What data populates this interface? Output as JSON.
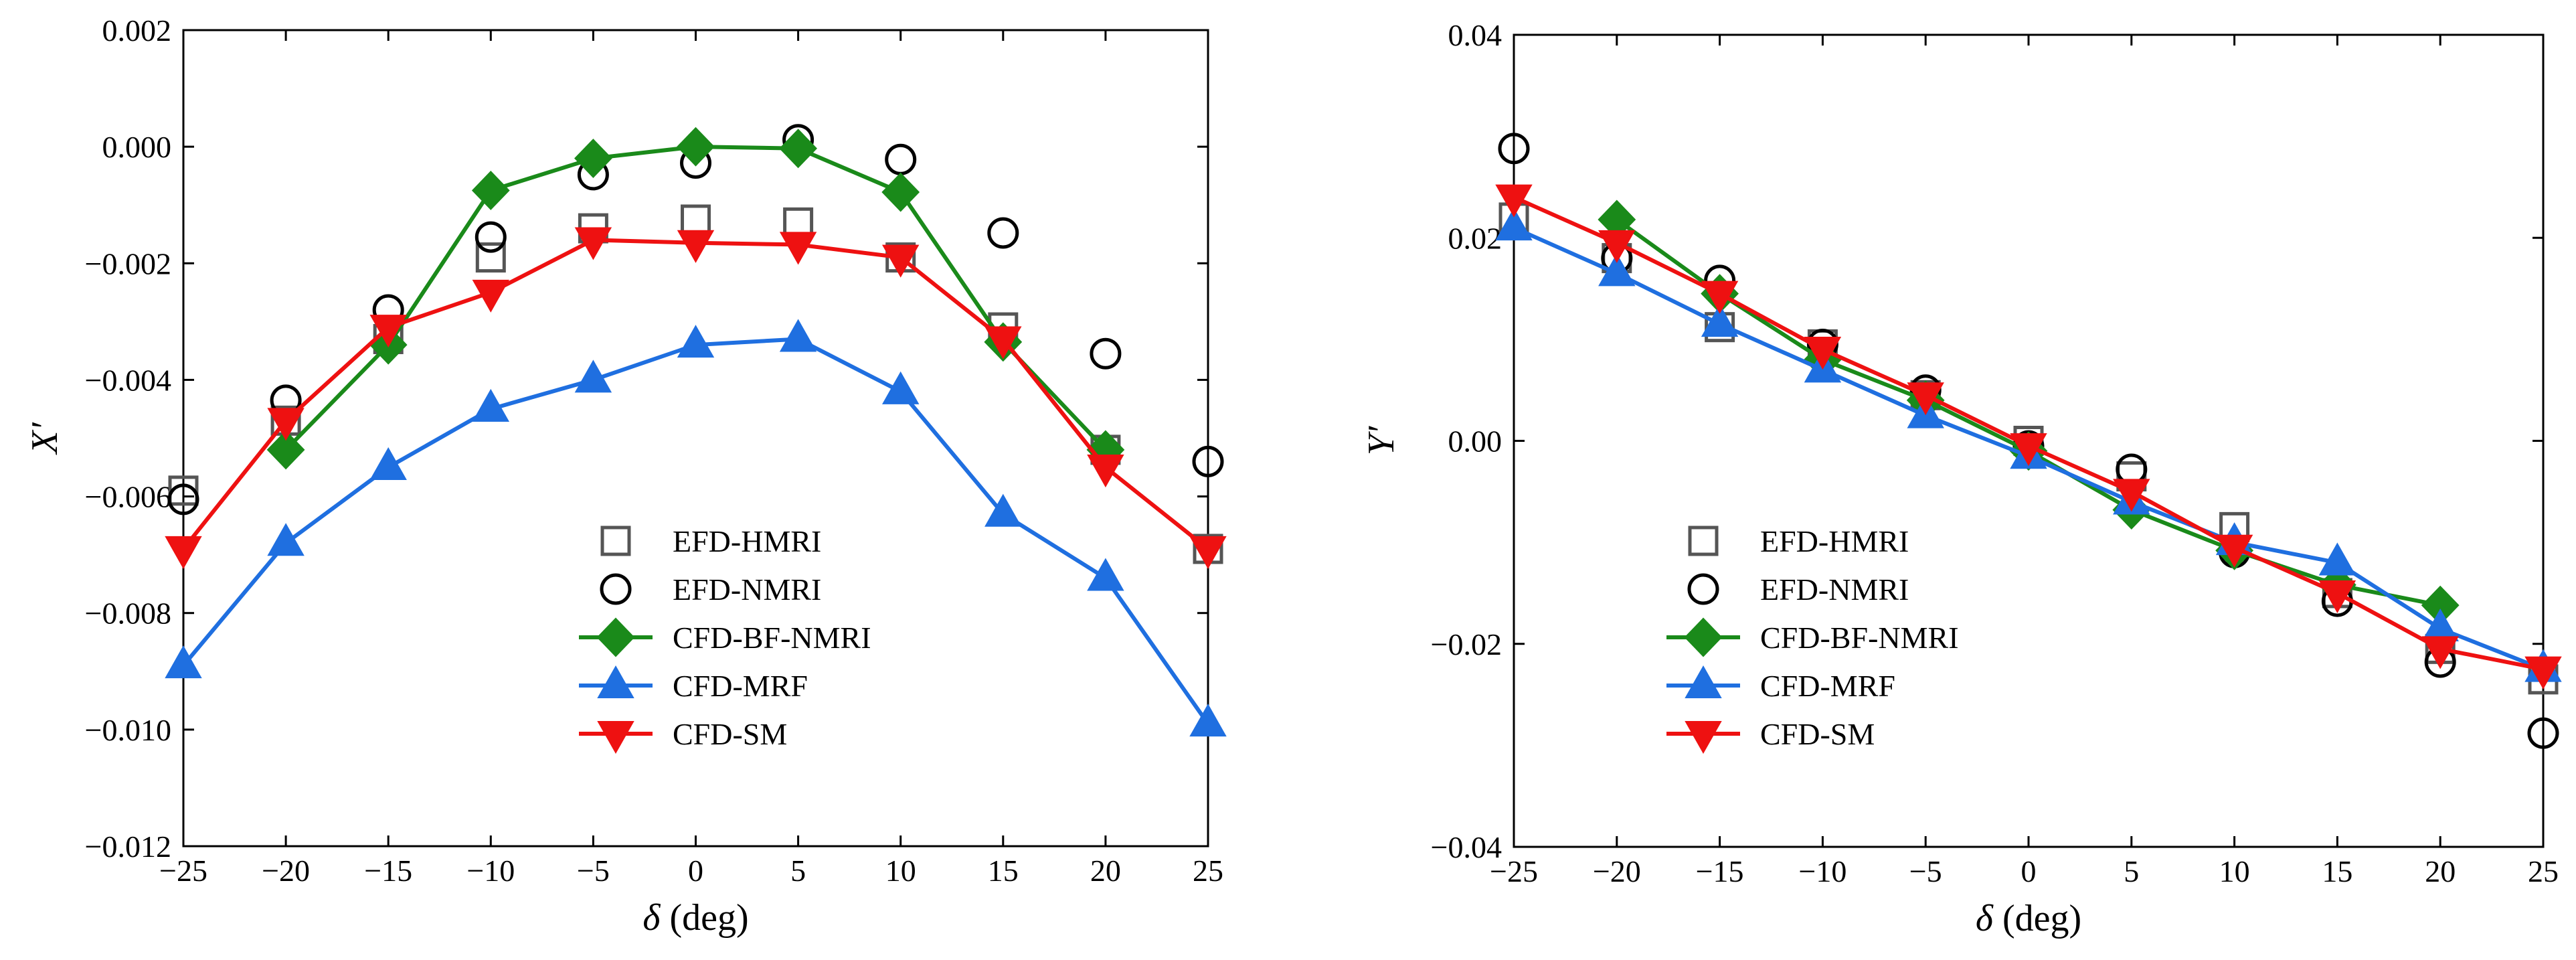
{
  "chart_data": [
    {
      "type": "line",
      "title": "",
      "xlabel": {
        "symbol": "δ",
        "unit": " (deg)"
      },
      "ylabel": "X′",
      "xlim": [
        -25,
        25
      ],
      "ylim": [
        -0.012,
        0.002
      ],
      "xticks": [
        -25,
        -20,
        -15,
        -10,
        -5,
        0,
        5,
        10,
        15,
        20,
        25
      ],
      "xtick_labels": [
        "−25",
        "−20",
        "−15",
        "−10",
        "−5",
        "0",
        "5",
        "10",
        "15",
        "20",
        "25"
      ],
      "yticks": [
        -0.012,
        -0.01,
        -0.008,
        -0.006,
        -0.004,
        -0.002,
        0.0,
        0.002
      ],
      "ytick_labels": [
        "−0.012",
        "−0.010",
        "−0.008",
        "−0.006",
        "−0.004",
        "−0.002",
        "0.000",
        "0.002"
      ],
      "legend_position": "lower-center",
      "series": [
        {
          "name": "EFD-HMRI",
          "marker": "square",
          "line": false,
          "color": "#555555",
          "x": [
            -25,
            -20,
            -15,
            -10,
            -5,
            0,
            5,
            10,
            15,
            20,
            25
          ],
          "y": [
            -0.0059,
            -0.0047,
            -0.0033,
            -0.0019,
            -0.0014,
            -0.00125,
            -0.0013,
            -0.0019,
            -0.0031,
            -0.0052,
            -0.0069
          ]
        },
        {
          "name": "EFD-NMRI",
          "marker": "circle",
          "line": false,
          "color": "#000000",
          "x": [
            -25,
            -20,
            -15,
            -10,
            -5,
            0,
            5,
            10,
            15,
            20,
            25
          ],
          "y": [
            -0.00605,
            -0.00435,
            -0.0028,
            -0.00155,
            -0.00048,
            -0.00028,
            0.00012,
            -0.00022,
            -0.00148,
            -0.00355,
            -0.0054
          ]
        },
        {
          "name": "CFD-BF-NMRI",
          "marker": "diamond",
          "line": true,
          "color": "#1a8a1a",
          "x": [
            -20,
            -15,
            -10,
            -5,
            0,
            5,
            10,
            15,
            20
          ],
          "y": [
            -0.0052,
            -0.0034,
            -0.00075,
            -0.0002,
            0.0,
            -3e-05,
            -0.00078,
            -0.00335,
            -0.0052
          ]
        },
        {
          "name": "CFD-MRF",
          "marker": "triangle-up",
          "line": true,
          "color": "#1f6fe0",
          "x": [
            -25,
            -20,
            -15,
            -10,
            -5,
            0,
            5,
            10,
            15,
            20,
            25
          ],
          "y": [
            -0.0089,
            -0.0068,
            -0.0055,
            -0.0045,
            -0.004,
            -0.0034,
            -0.0033,
            -0.0042,
            -0.0063,
            -0.0074,
            -0.0099
          ]
        },
        {
          "name": "CFD-SM",
          "marker": "triangle-down",
          "line": true,
          "color": "#ee1111",
          "x": [
            -25,
            -20,
            -15,
            -10,
            -5,
            0,
            5,
            10,
            15,
            20,
            25
          ],
          "y": [
            -0.0069,
            -0.0047,
            -0.0031,
            -0.0025,
            -0.0016,
            -0.00165,
            -0.00168,
            -0.0019,
            -0.0033,
            -0.0055,
            -0.0069
          ]
        }
      ]
    },
    {
      "type": "line",
      "title": "",
      "xlabel": {
        "symbol": "δ",
        "unit": " (deg)"
      },
      "ylabel": "Y′",
      "xlim": [
        -25,
        25
      ],
      "ylim": [
        -0.04,
        0.04
      ],
      "xticks": [
        -25,
        -20,
        -15,
        -10,
        -5,
        0,
        5,
        10,
        15,
        20,
        25
      ],
      "xtick_labels": [
        "−25",
        "−20",
        "−15",
        "−10",
        "−5",
        "0",
        "5",
        "10",
        "15",
        "20",
        "25"
      ],
      "yticks": [
        -0.04,
        -0.02,
        0.0,
        0.02,
        0.04
      ],
      "ytick_labels": [
        "−0.04",
        "−0.02",
        "0.00",
        "0.02",
        "0.04"
      ],
      "legend_position": "lower-left",
      "series": [
        {
          "name": "EFD-HMRI",
          "marker": "square",
          "line": false,
          "color": "#555555",
          "x": [
            -25,
            -20,
            -15,
            -10,
            -5,
            0,
            5,
            10,
            15,
            20,
            25
          ],
          "y": [
            0.022,
            0.018,
            0.0112,
            0.0095,
            0.0045,
            0.0,
            -0.0035,
            -0.0085,
            -0.015,
            -0.0205,
            -0.0235
          ]
        },
        {
          "name": "EFD-NMRI",
          "marker": "circle",
          "line": false,
          "color": "#000000",
          "x": [
            -25,
            -20,
            -15,
            -10,
            -5,
            0,
            5,
            10,
            15,
            20,
            25
          ],
          "y": [
            0.0288,
            0.018,
            0.0158,
            0.0095,
            0.005,
            -0.0005,
            -0.0028,
            -0.011,
            -0.0158,
            -0.0218,
            -0.0288
          ]
        },
        {
          "name": "CFD-BF-NMRI",
          "marker": "diamond",
          "line": true,
          "color": "#1a8a1a",
          "x": [
            -20,
            -15,
            -10,
            -5,
            0,
            5,
            10,
            15,
            20
          ],
          "y": [
            0.0218,
            0.0145,
            0.008,
            0.004,
            -0.001,
            -0.0068,
            -0.0108,
            -0.0142,
            -0.0162
          ]
        },
        {
          "name": "CFD-MRF",
          "marker": "triangle-up",
          "line": true,
          "color": "#1f6fe0",
          "x": [
            -25,
            -20,
            -15,
            -10,
            -5,
            0,
            5,
            10,
            15,
            20,
            25
          ],
          "y": [
            0.021,
            0.0165,
            0.0115,
            0.007,
            0.0025,
            -0.0015,
            -0.006,
            -0.01,
            -0.012,
            -0.0185,
            -0.0225
          ]
        },
        {
          "name": "CFD-SM",
          "marker": "triangle-down",
          "line": true,
          "color": "#ee1111",
          "x": [
            -25,
            -20,
            -15,
            -10,
            -5,
            0,
            5,
            10,
            15,
            20,
            25
          ],
          "y": [
            0.024,
            0.0195,
            0.0145,
            0.009,
            0.0045,
            -0.0005,
            -0.005,
            -0.0105,
            -0.015,
            -0.0205,
            -0.0225
          ]
        }
      ]
    }
  ]
}
